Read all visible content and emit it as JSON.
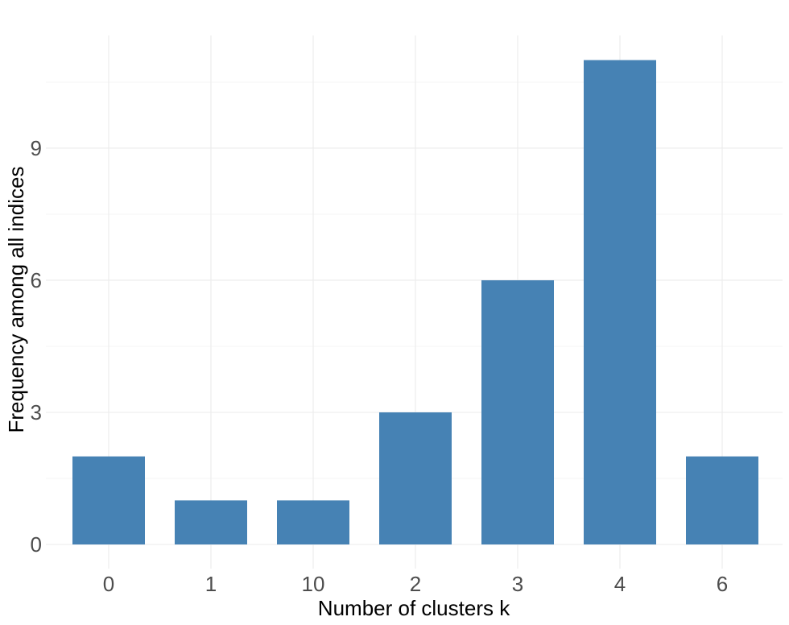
{
  "chart_data": {
    "type": "bar",
    "categories": [
      "0",
      "1",
      "10",
      "2",
      "3",
      "4",
      "6"
    ],
    "values": [
      2,
      1,
      1,
      3,
      6,
      11,
      2
    ],
    "xlabel": "Number of clusters k",
    "ylabel": "Frequency among all indices",
    "ylim": [
      0,
      11.55
    ],
    "yticks": [
      0,
      3,
      6,
      9
    ],
    "grid": true,
    "bar_color": "#4682b4",
    "grid_color": "#ebebeb",
    "legend": "none"
  }
}
